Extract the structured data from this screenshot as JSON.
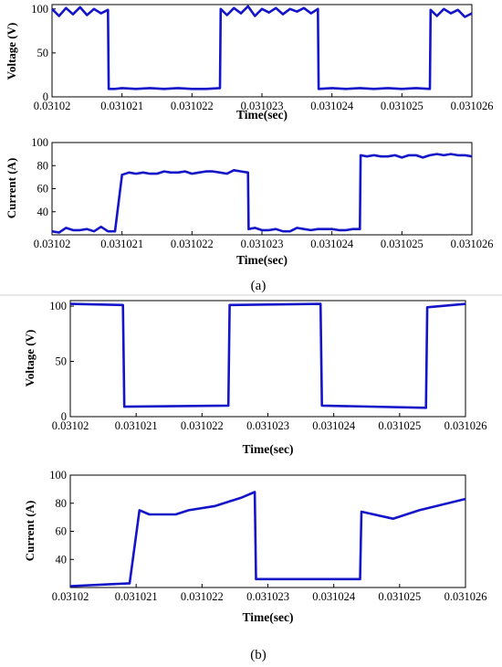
{
  "panels": [
    {
      "id": "a",
      "label": "(a)"
    },
    {
      "id": "b",
      "label": "(b)"
    }
  ],
  "chart_data": [
    {
      "panel": "a",
      "type": "line",
      "xlabel": "Time(sec)",
      "ylabel": "Voltage (V)",
      "xlim": [
        0.03102,
        0.031026
      ],
      "ylim": [
        0,
        105
      ],
      "xticks": [
        0.03102,
        0.031021,
        0.031022,
        0.031023,
        0.031024,
        0.031025,
        0.031026
      ],
      "xtick_labels": [
        "0.03102",
        "0.031021",
        "0.031022",
        "0.031023",
        "0.031024",
        "0.031025",
        "0.031026"
      ],
      "yticks": [
        0,
        50,
        100
      ],
      "ytick_labels": [
        "0",
        "50",
        "100"
      ],
      "x": [
        0.03102,
        0.0310201,
        0.0310202,
        0.0310203,
        0.0310204,
        0.0310205,
        0.0310206,
        0.0310207,
        0.0310208,
        0.03102081,
        0.0310209,
        0.031021,
        0.0310212,
        0.0310214,
        0.0310216,
        0.0310218,
        0.031022,
        0.0310222,
        0.0310224,
        0.03102241,
        0.0310225,
        0.0310226,
        0.0310227,
        0.0310228,
        0.0310229,
        0.031023,
        0.0310231,
        0.0310232,
        0.0310233,
        0.0310234,
        0.0310235,
        0.0310236,
        0.0310237,
        0.0310238,
        0.03102381,
        0.031024,
        0.0310242,
        0.0310244,
        0.0310246,
        0.0310248,
        0.031025,
        0.0310252,
        0.0310254,
        0.03102541,
        0.0310255,
        0.0310256,
        0.0310257,
        0.0310258,
        0.0310259,
        0.031026
      ],
      "y": [
        100,
        92,
        101,
        94,
        102,
        93,
        100,
        95,
        99,
        9,
        9,
        10,
        9,
        10,
        9,
        10,
        9,
        9,
        10,
        100,
        93,
        101,
        95,
        103,
        92,
        100,
        96,
        101,
        94,
        100,
        97,
        101,
        95,
        100,
        9,
        10,
        9,
        10,
        9,
        10,
        9,
        10,
        9,
        99,
        92,
        100,
        95,
        99,
        91,
        95
      ],
      "grid": false,
      "legend": "none"
    },
    {
      "panel": "a",
      "type": "line",
      "xlabel": "Time(sec)",
      "ylabel": "Current (A)",
      "xlim": [
        0.03102,
        0.031026
      ],
      "ylim": [
        20,
        100
      ],
      "xticks": [
        0.03102,
        0.031021,
        0.031022,
        0.031023,
        0.031024,
        0.031025,
        0.031026
      ],
      "xtick_labels": [
        "0.03102",
        "0.031021",
        "0.031022",
        "0.031023",
        "0.031024",
        "0.031025",
        "0.031026"
      ],
      "yticks": [
        40,
        60,
        80,
        100
      ],
      "ytick_labels": [
        "40",
        "60",
        "80",
        "100"
      ],
      "x": [
        0.03102,
        0.0310201,
        0.0310202,
        0.0310203,
        0.0310204,
        0.0310205,
        0.0310206,
        0.0310207,
        0.0310208,
        0.0310209,
        0.031021,
        0.0310211,
        0.0310212,
        0.0310213,
        0.0310214,
        0.0310215,
        0.0310216,
        0.0310217,
        0.0310218,
        0.0310219,
        0.031022,
        0.0310221,
        0.0310222,
        0.0310223,
        0.0310224,
        0.0310225,
        0.0310226,
        0.0310227,
        0.0310228,
        0.03102281,
        0.0310229,
        0.031023,
        0.0310231,
        0.0310232,
        0.0310233,
        0.0310234,
        0.0310235,
        0.0310236,
        0.0310237,
        0.0310238,
        0.0310239,
        0.031024,
        0.0310241,
        0.0310242,
        0.0310243,
        0.0310244,
        0.03102441,
        0.0310245,
        0.0310246,
        0.0310247,
        0.0310248,
        0.0310249,
        0.031025,
        0.0310251,
        0.0310252,
        0.0310253,
        0.0310254,
        0.0310255,
        0.0310256,
        0.0310257,
        0.0310258,
        0.0310259,
        0.031026
      ],
      "y": [
        23,
        22,
        26,
        24,
        24,
        25,
        23,
        27,
        23,
        23,
        72,
        74,
        73,
        74,
        73,
        73,
        75,
        74,
        74,
        75,
        73,
        74,
        75,
        75,
        74,
        73,
        76,
        75,
        74,
        25,
        26,
        24,
        24,
        25,
        23,
        23,
        26,
        25,
        24,
        25,
        25,
        25,
        24,
        24,
        25,
        25,
        89,
        88,
        89,
        88,
        88,
        89,
        87,
        89,
        89,
        87,
        89,
        90,
        89,
        90,
        89,
        89,
        88
      ],
      "grid": false,
      "legend": "none"
    },
    {
      "panel": "b",
      "type": "line",
      "xlabel": "Time(sec)",
      "ylabel": "Voltage (V)",
      "xlim": [
        0.03102,
        0.031026
      ],
      "ylim": [
        0,
        105
      ],
      "xticks": [
        0.03102,
        0.031021,
        0.031022,
        0.031023,
        0.031024,
        0.031025,
        0.031026
      ],
      "xtick_labels": [
        "0.03102",
        "0.031021",
        "0.031022",
        "0.031023",
        "0.031024",
        "0.031025",
        "0.031026"
      ],
      "yticks": [
        0,
        50,
        100
      ],
      "ytick_labels": [
        "0",
        "50",
        "100"
      ],
      "x": [
        0.03102,
        0.0310208,
        0.03102082,
        0.0310224,
        0.03102242,
        0.0310238,
        0.03102382,
        0.0310254,
        0.03102542,
        0.031026
      ],
      "y": [
        102,
        101,
        9,
        10,
        101,
        102,
        10,
        8,
        99,
        102
      ],
      "grid": false,
      "legend": "none"
    },
    {
      "panel": "b",
      "type": "line",
      "xlabel": "Time(sec)",
      "ylabel": "Current (A)",
      "xlim": [
        0.03102,
        0.031026
      ],
      "ylim": [
        20,
        100
      ],
      "xticks": [
        0.03102,
        0.031021,
        0.031022,
        0.031023,
        0.031024,
        0.031025,
        0.031026
      ],
      "xtick_labels": [
        "0.03102",
        "0.031021",
        "0.031022",
        "0.031023",
        "0.031024",
        "0.031025",
        "0.031026"
      ],
      "yticks": [
        40,
        60,
        80,
        100
      ],
      "ytick_labels": [
        "40",
        "60",
        "80",
        "100"
      ],
      "x": [
        0.03102,
        0.0310209,
        0.03102105,
        0.0310212,
        0.0310216,
        0.0310218,
        0.0310222,
        0.0310226,
        0.0310228,
        0.03102282,
        0.031023,
        0.0310244,
        0.03102442,
        0.0310249,
        0.0310253,
        0.031026
      ],
      "y": [
        21,
        23,
        75,
        72,
        72,
        75,
        78,
        84,
        88,
        26,
        26,
        26,
        74,
        69,
        75,
        83
      ],
      "grid": false,
      "legend": "none"
    }
  ]
}
